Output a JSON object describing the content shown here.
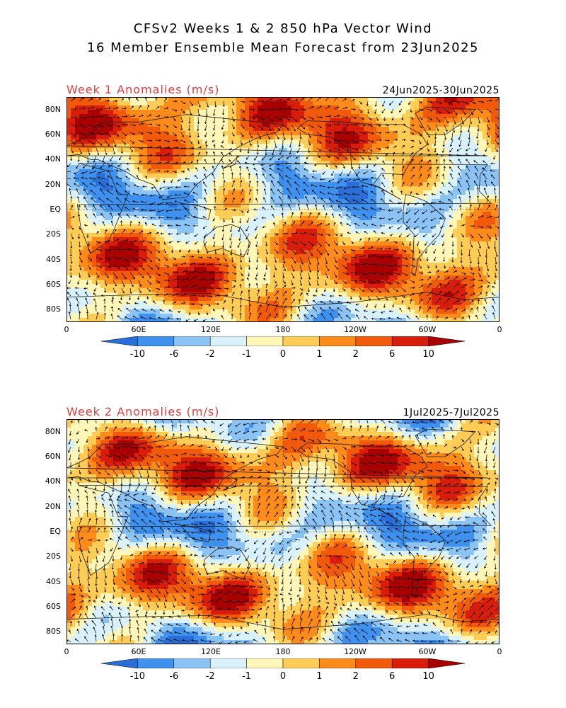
{
  "header": {
    "line1": "CFSv2 Weeks 1 & 2 850 hPa Vector Wind",
    "line2": "16 Member Ensemble Mean Forecast from 23Jun2025"
  },
  "panels": [
    {
      "title": "Week 1 Anomalies (m/s)",
      "date": "24Jun2025-30Jun2025",
      "seed": 11
    },
    {
      "title": "Week 2 Anomalies (m/s)",
      "date": "1Jul2025-7Jul2025",
      "seed": 29
    }
  ],
  "axes": {
    "lat_labels": [
      "80N",
      "60N",
      "40N",
      "20N",
      "EQ",
      "20S",
      "40S",
      "60S",
      "80S"
    ],
    "lon_labels": [
      "0",
      "60E",
      "120E",
      "180",
      "120W",
      "60W",
      "0"
    ]
  },
  "colorbar": {
    "labels": [
      "-10",
      "-6",
      "-2",
      "-1",
      "0",
      "1",
      "2",
      "6",
      "10"
    ],
    "colors": [
      "#2a6fd8",
      "#3e91ee",
      "#8cc3f5",
      "#d8f1fb",
      "#fff6b8",
      "#ffcc55",
      "#ff8c1a",
      "#f05a0a",
      "#d81e0a",
      "#a80000"
    ]
  },
  "colors": {
    "title_red": "#e23c3c",
    "continent": "#1a1a1a",
    "arrow": "#000000"
  }
}
